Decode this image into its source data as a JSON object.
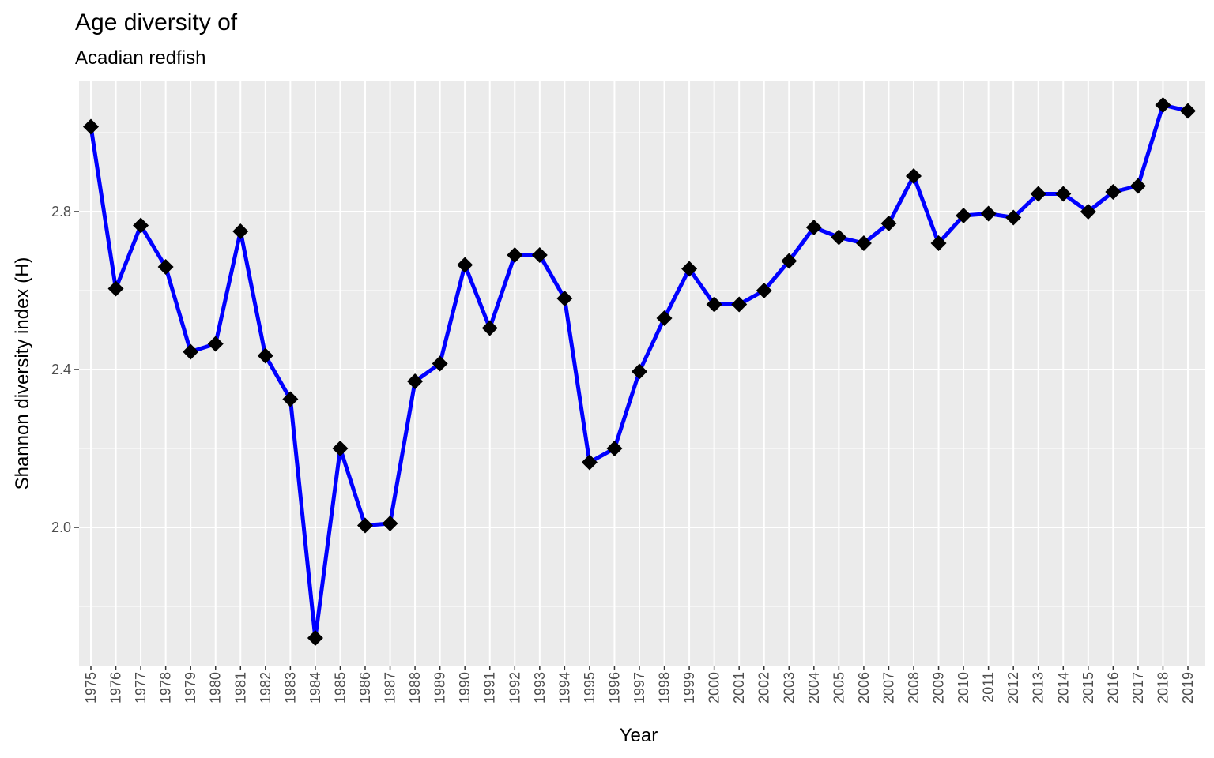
{
  "chart_data": {
    "type": "line",
    "title": "Age diversity of",
    "subtitle": "Acadian redfish",
    "xlabel": "Year",
    "ylabel": "Shannon diversity index (H)",
    "ylim": [
      1.65,
      3.13
    ],
    "yticks": [
      2.0,
      2.4,
      2.8
    ],
    "ytick_labels": [
      "2.0",
      "2.4",
      "2.8"
    ],
    "grid": true,
    "line_color": "#0000ff",
    "marker_color": "#000000",
    "marker": "diamond",
    "panel_background": "#ebebeb",
    "x": [
      "1975",
      "1976",
      "1977",
      "1978",
      "1979",
      "1980",
      "1981",
      "1982",
      "1983",
      "1984",
      "1985",
      "1986",
      "1987",
      "1988",
      "1989",
      "1990",
      "1991",
      "1992",
      "1993",
      "1994",
      "1995",
      "1996",
      "1997",
      "1998",
      "1999",
      "2000",
      "2001",
      "2002",
      "2003",
      "2004",
      "2005",
      "2006",
      "2007",
      "2008",
      "2009",
      "2010",
      "2011",
      "2012",
      "2013",
      "2014",
      "2015",
      "2016",
      "2017",
      "2018",
      "2019"
    ],
    "values": [
      3.015,
      2.605,
      2.765,
      2.66,
      2.445,
      2.465,
      2.75,
      2.435,
      2.325,
      1.72,
      2.2,
      2.005,
      2.01,
      2.37,
      2.415,
      2.665,
      2.505,
      2.69,
      2.69,
      2.58,
      2.165,
      2.2,
      2.395,
      2.53,
      2.655,
      2.565,
      2.565,
      2.6,
      2.675,
      2.76,
      2.735,
      2.72,
      2.77,
      2.89,
      2.72,
      2.79,
      2.795,
      2.785,
      2.845,
      2.845,
      2.8,
      2.85,
      2.865,
      3.07,
      3.055
    ]
  }
}
